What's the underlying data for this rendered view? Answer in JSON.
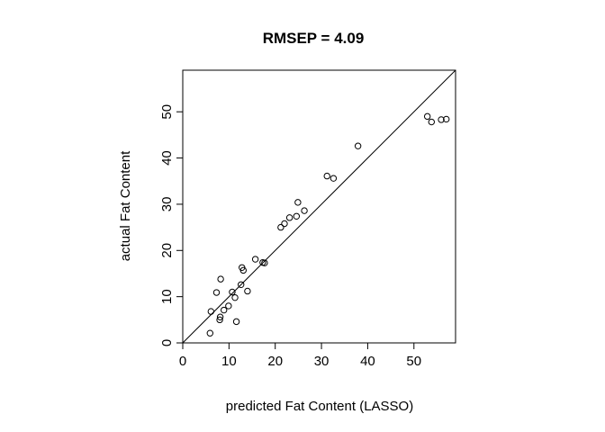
{
  "chart_data": {
    "type": "scatter",
    "title": "RMSEP = 4.09",
    "xlabel": "predicted Fat Content (LASSO)",
    "ylabel": "actual Fat Content",
    "xlim": [
      0,
      59
    ],
    "ylim": [
      0,
      59
    ],
    "x_ticks": [
      0,
      10,
      20,
      30,
      40,
      50
    ],
    "y_ticks": [
      0,
      10,
      20,
      30,
      40,
      50
    ],
    "grid": false,
    "legend": "none",
    "reference_line": {
      "type": "identity",
      "from": [
        0,
        0
      ],
      "to": [
        59,
        59
      ]
    },
    "marker": "open-circle",
    "colors": {
      "points": "#000000",
      "line": "#000000",
      "frame": "#000000"
    },
    "points": [
      {
        "x": 5.9,
        "y": 2.1
      },
      {
        "x": 6.1,
        "y": 6.8
      },
      {
        "x": 7.3,
        "y": 10.9
      },
      {
        "x": 8.0,
        "y": 5.0
      },
      {
        "x": 8.1,
        "y": 5.6
      },
      {
        "x": 8.2,
        "y": 13.8
      },
      {
        "x": 8.9,
        "y": 7.1
      },
      {
        "x": 9.9,
        "y": 8.0
      },
      {
        "x": 10.7,
        "y": 11.0
      },
      {
        "x": 11.3,
        "y": 9.8
      },
      {
        "x": 11.6,
        "y": 4.6
      },
      {
        "x": 12.6,
        "y": 12.6
      },
      {
        "x": 12.8,
        "y": 16.3
      },
      {
        "x": 13.1,
        "y": 15.7
      },
      {
        "x": 14.0,
        "y": 11.2
      },
      {
        "x": 15.7,
        "y": 18.1
      },
      {
        "x": 17.3,
        "y": 17.4
      },
      {
        "x": 17.7,
        "y": 17.3
      },
      {
        "x": 21.2,
        "y": 25.0
      },
      {
        "x": 22.0,
        "y": 25.8
      },
      {
        "x": 23.1,
        "y": 27.1
      },
      {
        "x": 24.6,
        "y": 27.4
      },
      {
        "x": 24.9,
        "y": 30.4
      },
      {
        "x": 26.3,
        "y": 28.6
      },
      {
        "x": 31.2,
        "y": 36.1
      },
      {
        "x": 32.6,
        "y": 35.6
      },
      {
        "x": 37.9,
        "y": 42.6
      },
      {
        "x": 52.9,
        "y": 49.0
      },
      {
        "x": 53.8,
        "y": 47.8
      },
      {
        "x": 55.9,
        "y": 48.3
      },
      {
        "x": 57.0,
        "y": 48.4
      }
    ]
  }
}
